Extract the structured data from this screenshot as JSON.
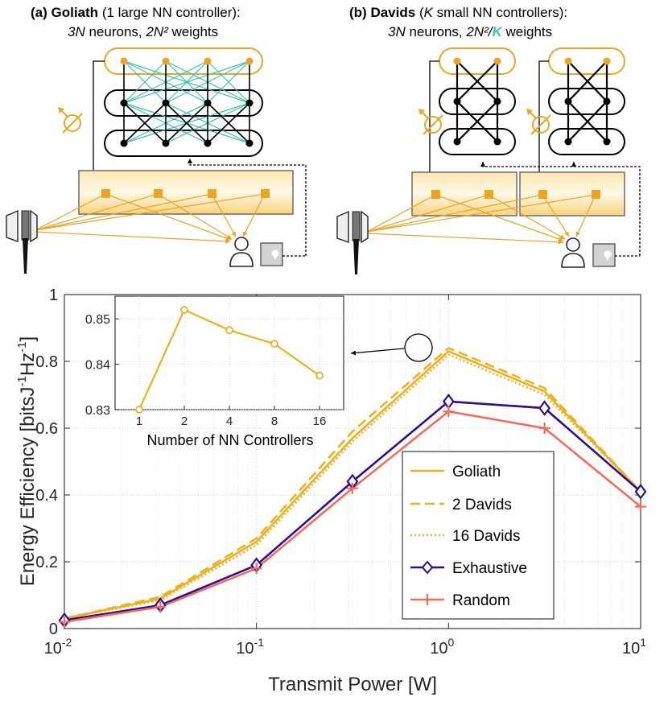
{
  "diagrams": {
    "goliath": {
      "tag": "(a)",
      "name": "Goliath",
      "desc": "(1 large NN controller):",
      "n_neurons": "3N",
      "neurons_word": "neurons,",
      "n_weights": "2N²",
      "weights_word": "weights"
    },
    "davids": {
      "tag": "(b)",
      "name": "Davids",
      "desc_pre": "(",
      "desc_k": "K",
      "desc_post": " small NN controllers):",
      "n_neurons": "3N",
      "neurons_word": "neurons,",
      "n_weights": "2N²/",
      "k": "K",
      "weights_word": "weights"
    }
  },
  "colors": {
    "goliath": "#EDB120",
    "exhaustive": "#2E0D8E",
    "random": "#F36C5A",
    "teal": "#3FC1B0",
    "diagram_orange": "#EDA323"
  },
  "icons": [
    "base-station-icon",
    "user-icon",
    "location-pin-icon",
    "phase-shifter-icon"
  ],
  "chart_data": [
    {
      "type": "line",
      "xscale": "log",
      "xlabel": "Transmit Power [W]",
      "ylabel": "Energy Efficiency [bitsJ",
      "ylabel_sup1": "-1",
      "ylabel_mid": "Hz",
      "ylabel_sup2": "-1",
      "ylabel_end": "]",
      "xlim": [
        0.01,
        10
      ],
      "ylim": [
        0,
        1
      ],
      "x_ticks": [
        0.01,
        0.1,
        1,
        10
      ],
      "x_tick_base": "10",
      "x_tick_exps": [
        "-2",
        "-1",
        "0",
        "1"
      ],
      "y_ticks": [
        "0",
        "0.2",
        "0.4",
        "0.6",
        "0.8",
        "1"
      ],
      "grid": true,
      "legend_position": "lower-right",
      "x": [
        0.01,
        0.0316,
        0.1,
        0.316,
        1,
        3.16,
        10
      ],
      "series": [
        {
          "name": "Goliath",
          "style": "solid",
          "color": "#EDB120",
          "values": [
            0.03,
            0.09,
            0.26,
            0.57,
            0.83,
            0.71,
            0.41
          ]
        },
        {
          "name": "2 Davids",
          "style": "dashed",
          "color": "#EDB120",
          "values": [
            0.03,
            0.095,
            0.27,
            0.59,
            0.84,
            0.72,
            0.41
          ]
        },
        {
          "name": "16 Davids",
          "style": "dotted",
          "color": "#EDB120",
          "values": [
            0.03,
            0.085,
            0.25,
            0.56,
            0.82,
            0.7,
            0.41
          ]
        },
        {
          "name": "Exhaustive",
          "style": "solid",
          "marker": "diamond",
          "color": "#2E0D8E",
          "values": [
            0.025,
            0.07,
            0.19,
            0.44,
            0.68,
            0.66,
            0.41
          ]
        },
        {
          "name": "Random",
          "style": "solid",
          "marker": "plus",
          "color": "#F36C5A",
          "values": [
            0.02,
            0.065,
            0.18,
            0.42,
            0.65,
            0.6,
            0.365
          ]
        }
      ]
    },
    {
      "type": "line",
      "xlabel": "Number of NN Controllers",
      "categories": [
        "1",
        "2",
        "4",
        "8",
        "16"
      ],
      "ylim": [
        0.83,
        0.855
      ],
      "y_ticks": [
        "0.83",
        "0.84",
        "0.85"
      ],
      "grid": true,
      "series": [
        {
          "marker": "circle",
          "color": "#EDB120",
          "values": [
            0.83,
            0.852,
            0.8475,
            0.8445,
            0.8375
          ]
        }
      ]
    }
  ]
}
